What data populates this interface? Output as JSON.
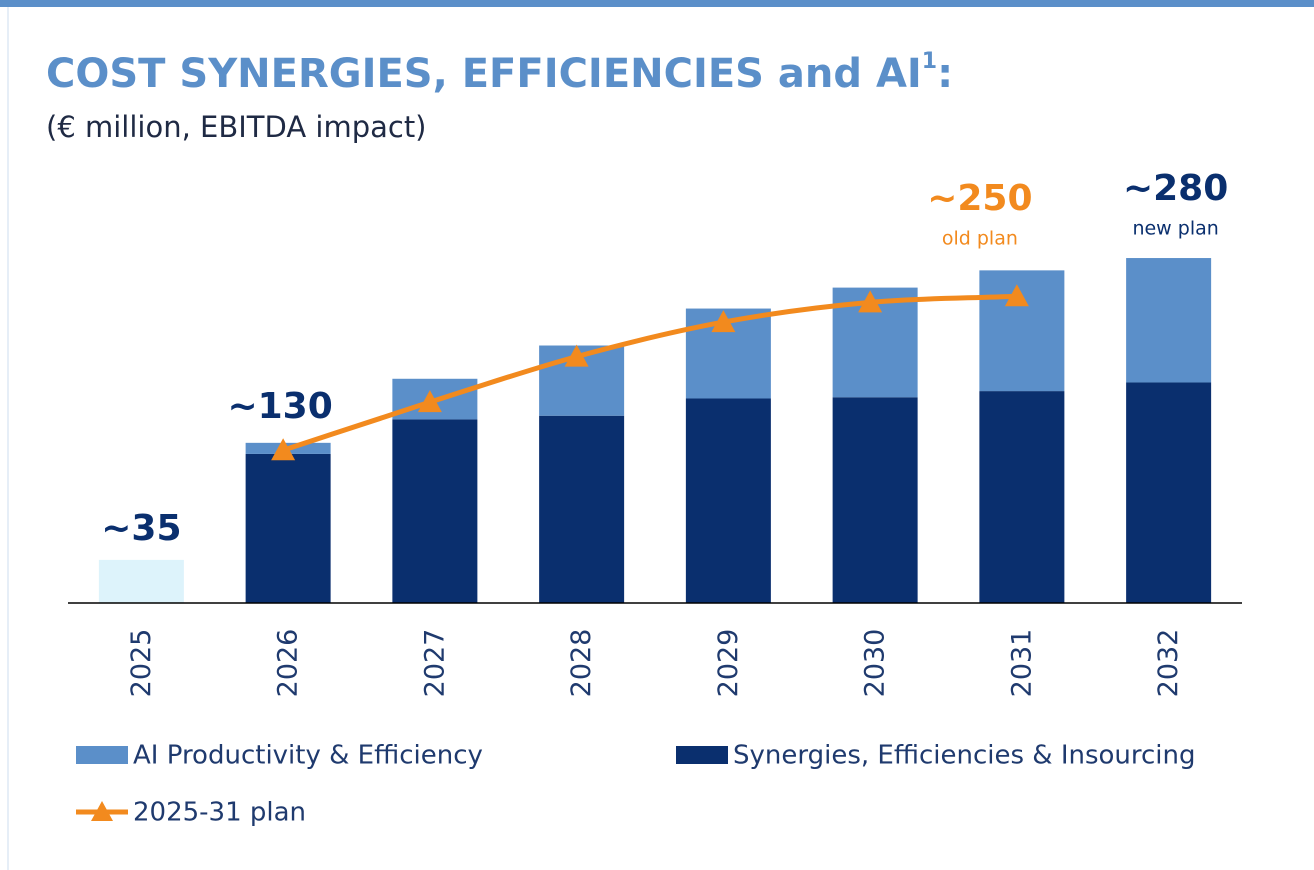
{
  "chart_data": {
    "type": "stacked_bar_line",
    "title": "COST SYNERGIES, EFFICIENCIES and AI",
    "title_footnote": "1",
    "title_end": ":",
    "subtitle": "(€ million, EBITDA impact)",
    "categories": [
      "2025",
      "2026",
      "2027",
      "2028",
      "2029",
      "2030",
      "2031",
      "2032"
    ],
    "ylim": [
      0,
      300
    ],
    "series": [
      {
        "name": "Synergies, Efficiencies & Insourcing",
        "kind": "bar",
        "color": "#0a2f6e",
        "colors": [
          "#ddf3fb",
          "#0a2f6e",
          "#0a2f6e",
          "#0a2f6e",
          "#0a2f6e",
          "#0a2f6e",
          "#0a2f6e",
          "#0a2f6e"
        ],
        "values": [
          35,
          121,
          149,
          152,
          166,
          167,
          172,
          179
        ]
      },
      {
        "name": "AI Productivity & Efficiency",
        "kind": "bar",
        "color": "#5b8fc9",
        "values": [
          null,
          9,
          33,
          57,
          73,
          89,
          98,
          101
        ]
      },
      {
        "name": "2025-31 plan",
        "kind": "line",
        "color": "#f28a1e",
        "values": [
          null,
          124,
          163,
          200,
          228,
          244,
          249,
          null
        ]
      }
    ],
    "annotations": [
      {
        "text": "~35",
        "value": 35,
        "x": "2025",
        "color": "#0a2f6e"
      },
      {
        "text": "~130",
        "value": 130,
        "x": "2026",
        "color": "#0a2f6e"
      },
      {
        "text": "~250",
        "subtext": "old plan",
        "value": 250,
        "x": "2031",
        "color": "#f28a1e"
      },
      {
        "text": "~280",
        "subtext": "new plan",
        "value": 280,
        "x": "2032",
        "color": "#0a2f6e"
      }
    ]
  }
}
